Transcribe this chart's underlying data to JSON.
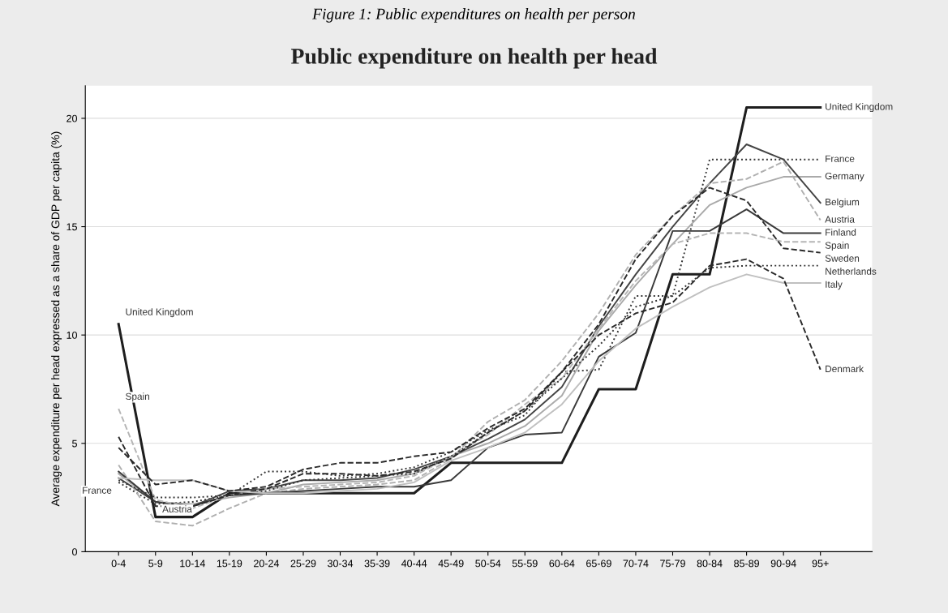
{
  "chart_data": {
    "type": "line",
    "title": "Public expenditure on health per head",
    "ylabel": "Average expenditure per head expressed as a share of GDP per capita (%)",
    "categories": [
      "0-4",
      "5-9",
      "10-14",
      "15-19",
      "20-24",
      "25-29",
      "30-34",
      "35-39",
      "40-44",
      "45-49",
      "50-54",
      "55-59",
      "60-64",
      "65-69",
      "70-74",
      "75-79",
      "80-84",
      "85-89",
      "90-94",
      "95+"
    ],
    "ylim": [
      0,
      21.5
    ],
    "yticks": [
      0,
      5,
      10,
      15,
      20
    ],
    "grid": "y",
    "legend": false,
    "marker": "none",
    "series": [
      {
        "name": "United Kingdom",
        "color": "#1e1e1e",
        "line_style": "solid",
        "values": [
          10.5,
          1.6,
          1.6,
          2.7,
          2.7,
          2.7,
          2.7,
          2.7,
          2.7,
          4.1,
          4.1,
          4.1,
          4.1,
          7.5,
          7.5,
          12.8,
          12.8,
          20.5,
          20.5,
          20.5
        ]
      },
      {
        "name": "France",
        "color": "#333333",
        "line_style": "dotted",
        "values": [
          3.2,
          2.2,
          2.3,
          2.6,
          3.7,
          3.7,
          3.5,
          3.6,
          3.9,
          4.6,
          5.6,
          6.3,
          8.3,
          8.4,
          11.8,
          11.8,
          18.1,
          18.1,
          18.1,
          18.1
        ]
      },
      {
        "name": "Germany",
        "color": "#aaaaaa",
        "line_style": "solid",
        "values": [
          3.6,
          2.3,
          2.2,
          2.5,
          2.7,
          3.1,
          3.2,
          3.3,
          3.6,
          4.4,
          5.0,
          5.8,
          7.2,
          10.2,
          12.3,
          14.2,
          16.0,
          16.8,
          17.3,
          17.3
        ]
      },
      {
        "name": "Belgium",
        "color": "#444444",
        "line_style": "solid",
        "values": [
          3.4,
          2.3,
          2.1,
          2.8,
          2.9,
          3.3,
          3.3,
          3.4,
          3.8,
          4.4,
          5.2,
          6.1,
          7.6,
          10.4,
          12.8,
          15.0,
          17.0,
          18.8,
          18.1,
          16.1
        ]
      },
      {
        "name": "Austria",
        "color": "#b0b0b0",
        "line_style": "dashed",
        "values": [
          4.0,
          1.4,
          1.2,
          2.0,
          2.7,
          2.9,
          3.0,
          3.1,
          3.3,
          4.3,
          6.0,
          7.0,
          8.8,
          11.0,
          13.7,
          15.5,
          17.0,
          17.2,
          18.0,
          15.3
        ]
      },
      {
        "name": "Finland",
        "color": "#3a3a3a",
        "line_style": "solid",
        "values": [
          3.7,
          2.3,
          2.1,
          2.6,
          2.7,
          2.8,
          2.9,
          3.0,
          3.0,
          3.3,
          4.8,
          5.4,
          5.5,
          9.0,
          10.1,
          14.8,
          14.8,
          15.8,
          14.7,
          14.7
        ]
      },
      {
        "name": "Spain",
        "color": "#b5b5b5",
        "line_style": "dashed",
        "values": [
          6.6,
          2.4,
          2.0,
          2.6,
          2.9,
          3.0,
          3.1,
          3.2,
          3.5,
          4.4,
          5.4,
          6.8,
          8.0,
          10.3,
          12.5,
          14.2,
          14.7,
          14.7,
          14.3,
          14.3
        ]
      },
      {
        "name": "Sweden",
        "color": "#2a2a2a",
        "line_style": "dashed",
        "values": [
          5.3,
          2.1,
          2.1,
          2.6,
          2.9,
          3.6,
          3.6,
          3.5,
          3.7,
          4.3,
          5.5,
          6.5,
          8.3,
          10.5,
          13.5,
          15.5,
          16.8,
          16.2,
          14.0,
          13.8
        ]
      },
      {
        "name": "Netherlands",
        "color": "#333333",
        "line_style": "dotted",
        "values": [
          3.3,
          2.5,
          2.5,
          2.6,
          2.8,
          3.3,
          3.4,
          3.5,
          3.6,
          4.4,
          5.5,
          6.5,
          8.0,
          9.5,
          11.3,
          11.8,
          13.1,
          13.2,
          13.2,
          13.2
        ]
      },
      {
        "name": "Italy",
        "color": "#c0c0c0",
        "line_style": "solid",
        "values": [
          3.4,
          3.3,
          3.3,
          2.8,
          2.7,
          2.7,
          2.8,
          2.9,
          3.2,
          4.2,
          4.8,
          5.5,
          6.8,
          8.8,
          10.3,
          11.3,
          12.2,
          12.8,
          12.4,
          12.4
        ]
      },
      {
        "name": "Denmark",
        "color": "#2a2a2a",
        "line_style": "dashed",
        "values": [
          4.8,
          3.1,
          3.3,
          2.8,
          3.0,
          3.8,
          4.1,
          4.1,
          4.4,
          4.6,
          5.7,
          6.6,
          8.3,
          10.0,
          11.0,
          11.5,
          13.2,
          13.5,
          12.6,
          8.4
        ]
      }
    ],
    "annotations": [
      "Figure 1: Public expenditures on health per person",
      {
        "text": "United Kingdom",
        "x": "0-4",
        "y": 10.5
      },
      {
        "text": "Spain",
        "x": "0-4",
        "y": 6.6
      },
      {
        "text": "France",
        "x": "0-4",
        "y": 3.2
      },
      {
        "text": "Austria",
        "x": "5-9",
        "y": 1.4
      }
    ]
  }
}
